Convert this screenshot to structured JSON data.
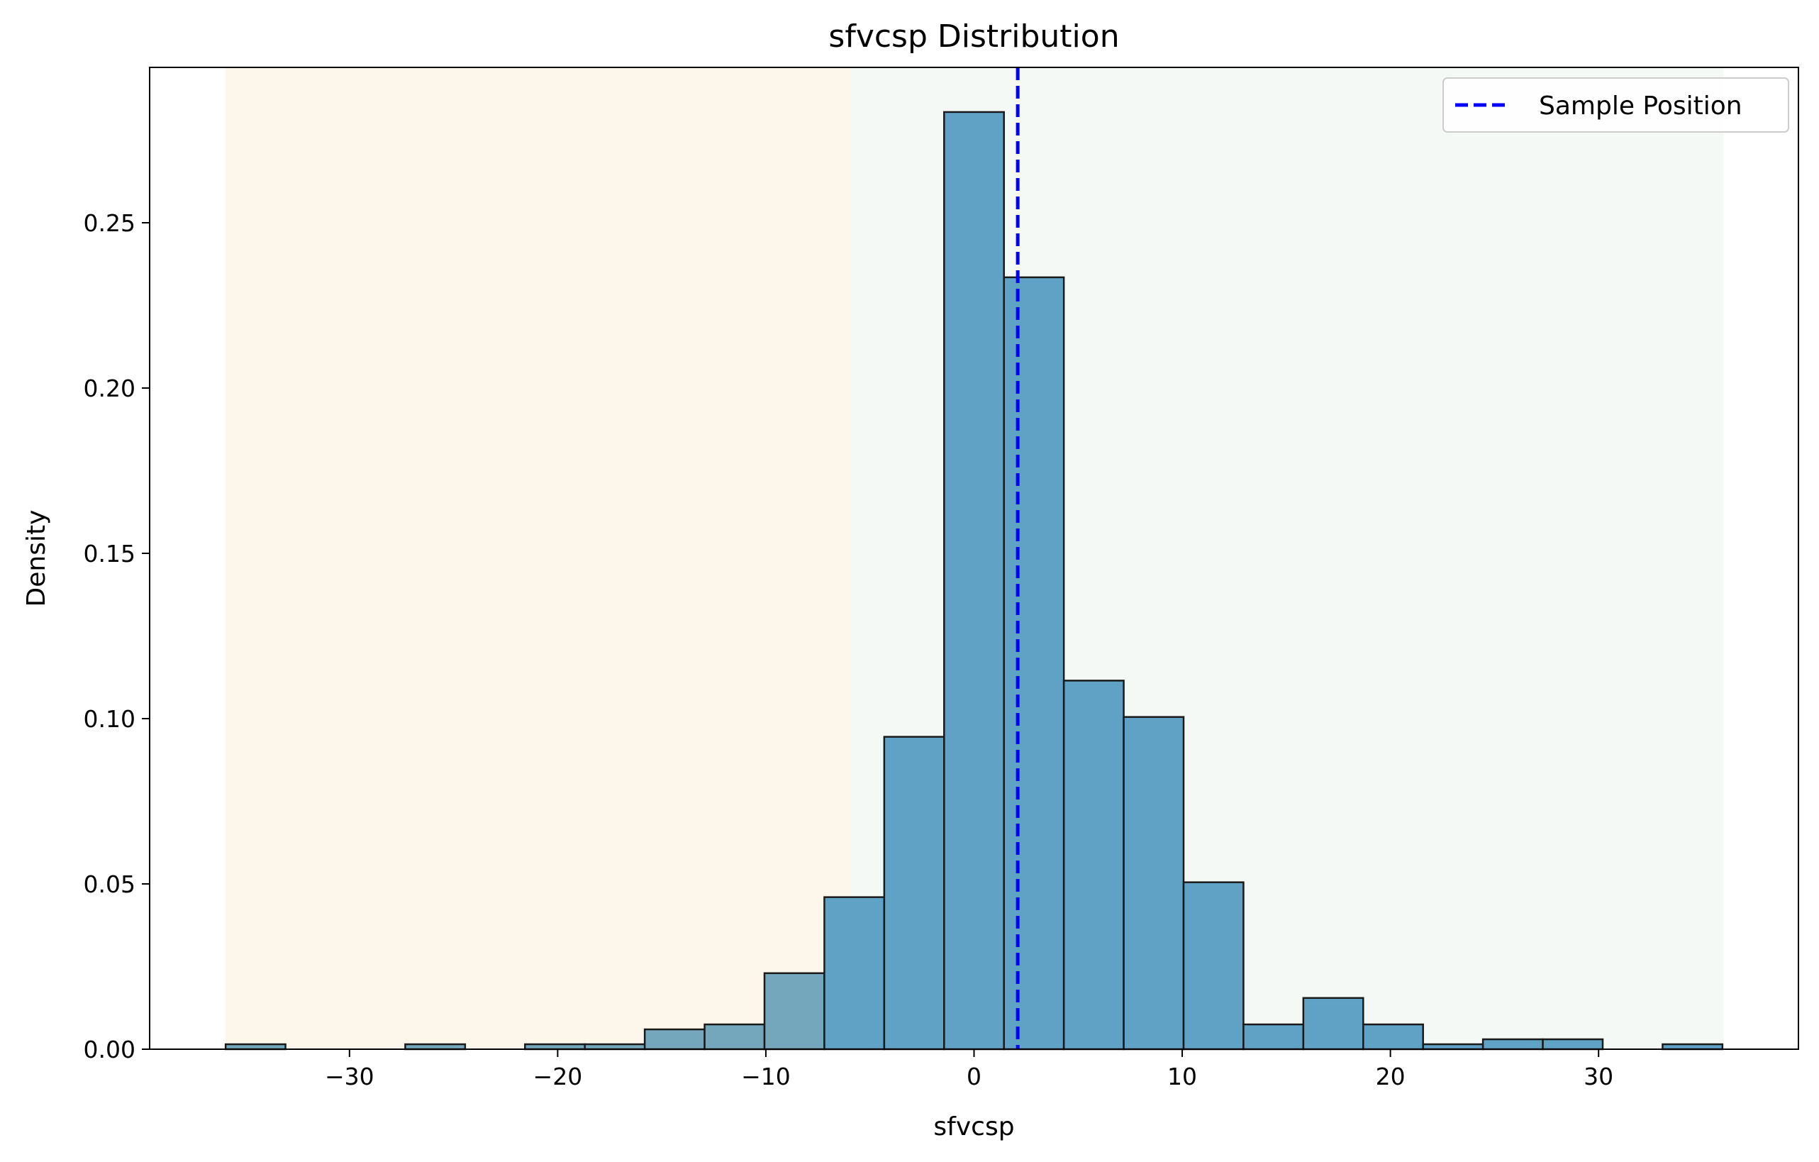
{
  "chart_data": {
    "type": "bar",
    "title": "sfvcsp Distribution",
    "xlabel": "sfvcsp",
    "ylabel": "Density",
    "xlim": [
      -39.6,
      39.6
    ],
    "ylim": [
      0,
      0.297
    ],
    "x_ticks": [
      -30,
      -20,
      -10,
      0,
      10,
      20,
      30
    ],
    "x_tick_labels": [
      "−30",
      "−20",
      "−10",
      "0",
      "10",
      "20",
      "30"
    ],
    "y_ticks": [
      0.0,
      0.05,
      0.1,
      0.15,
      0.2,
      0.25
    ],
    "y_tick_labels": [
      "0.00",
      "0.05",
      "0.10",
      "0.15",
      "0.20",
      "0.25"
    ],
    "grid": false,
    "bins": {
      "start": -35.95,
      "width": 2.876,
      "densities": [
        0.0015,
        0,
        0,
        0.0015,
        0,
        0.0015,
        0.0015,
        0.006,
        0.0075,
        0.023,
        0.046,
        0.0945,
        0.2835,
        0.2335,
        0.1115,
        0.1005,
        0.0505,
        0.0075,
        0.0155,
        0.0075,
        0.0015,
        0.003,
        0.003,
        0,
        0.0015
      ]
    },
    "regions": [
      {
        "from": -35.95,
        "to": -5.95,
        "color": "#fdf6ea"
      },
      {
        "from": -5.95,
        "to": 36.0,
        "color": "#f5f9f5"
      }
    ],
    "sample_position": 2.1,
    "legend": {
      "placement": "top-right",
      "entries": [
        "Sample Position"
      ]
    },
    "colors": {
      "bar_fill": "#5fa2c6",
      "bar_fill_in_orange_region": "#74a7bb",
      "bar_edge": "#1a1a1a",
      "sample_line": "#0000ff"
    }
  }
}
